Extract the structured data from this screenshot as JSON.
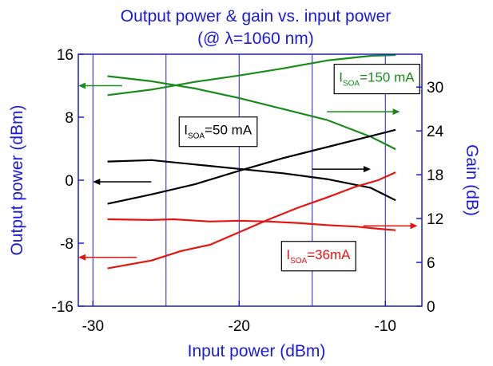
{
  "chart_data": {
    "type": "line",
    "title_line1": "Output power & gain vs. input power",
    "title_line2": "(@ λ=1060 nm)",
    "xlabel": "Input power (dBm)",
    "ylabel_left": "Output power (dBm)",
    "ylabel_right": "Gain (dB)",
    "xlim": [
      -31,
      -7.5
    ],
    "ylim_left": [
      -16,
      16
    ],
    "ylim_right": [
      0,
      34.5
    ],
    "x_ticks": [
      -30,
      -20,
      -10
    ],
    "x_tick_labels": [
      "-30",
      "-20",
      "-10"
    ],
    "y_left_ticks": [
      -16,
      -8,
      0,
      8,
      16
    ],
    "y_left_tick_labels": [
      "-16",
      "-8",
      "0",
      "8",
      "16"
    ],
    "y_right_ticks": [
      0,
      6,
      12,
      18,
      24,
      30
    ],
    "y_right_tick_labels": [
      "0",
      "6",
      "12",
      "18",
      "24",
      "30"
    ],
    "x_grid": [
      -30,
      -25,
      -20,
      -15,
      -10
    ],
    "colors": {
      "axis": "#1a1ae6",
      "green": "#1a8c1a",
      "black": "#000000",
      "red": "#e6140f"
    },
    "series": [
      {
        "color": "green",
        "axis": "left",
        "x": [
          -29,
          -26,
          -23,
          -20,
          -17,
          -14,
          -11,
          -9.3
        ],
        "values": [
          10.8,
          11.5,
          12.5,
          13.3,
          14.2,
          15.2,
          15.8,
          15.9
        ]
      },
      {
        "color": "green",
        "axis": "right",
        "x": [
          -29,
          -26,
          -23,
          -20,
          -17,
          -14,
          -11,
          -9.3
        ],
        "values": [
          31.5,
          30.8,
          29.8,
          28.5,
          27.0,
          25.5,
          23.2,
          21.5
        ]
      },
      {
        "color": "black",
        "axis": "left",
        "x": [
          -29,
          -26,
          -23,
          -20,
          -17,
          -14,
          -11,
          -9.3
        ],
        "values": [
          -3.0,
          -1.8,
          -0.5,
          1.2,
          2.8,
          4.2,
          5.6,
          6.4
        ]
      },
      {
        "color": "black",
        "axis": "right",
        "x": [
          -29,
          -26,
          -23,
          -20,
          -17,
          -14,
          -11,
          -9.3
        ],
        "values": [
          19.8,
          20.0,
          19.4,
          18.8,
          18.2,
          17.4,
          16.2,
          14.5
        ]
      },
      {
        "color": "red",
        "axis": "left",
        "x": [
          -29,
          -26,
          -24,
          -22,
          -20,
          -18,
          -16,
          -14,
          -12,
          -10.5,
          -9.3
        ],
        "values": [
          -11.2,
          -10.2,
          -9.0,
          -8.2,
          -6.6,
          -5.0,
          -3.5,
          -2.2,
          -0.8,
          0.0,
          1.0
        ]
      },
      {
        "color": "red",
        "axis": "right",
        "x": [
          -29,
          -26,
          -24.5,
          -22,
          -20,
          -18,
          -16,
          -14,
          -12,
          -10.5,
          -9.3
        ],
        "values": [
          11.9,
          11.8,
          11.9,
          11.6,
          11.7,
          11.6,
          11.4,
          11.1,
          10.9,
          10.6,
          10.4
        ]
      }
    ],
    "arrows": [
      {
        "color": "green",
        "direction": "left",
        "x": [
          -28.0,
          -31.0
        ],
        "axis": "left",
        "y": 12.0
      },
      {
        "color": "green",
        "direction": "right",
        "x": [
          -14.0,
          -9.0
        ],
        "axis": "left",
        "y": 8.7
      },
      {
        "color": "black",
        "direction": "left",
        "x": [
          -26.0,
          -30.0
        ],
        "axis": "left",
        "y": -0.2
      },
      {
        "color": "black",
        "direction": "right",
        "x": [
          -15.0,
          -11.0
        ],
        "axis": "left",
        "y": 1.4
      },
      {
        "color": "red",
        "direction": "left",
        "x": [
          -27.0,
          -31.0
        ],
        "axis": "left",
        "y": -9.8
      },
      {
        "color": "red",
        "direction": "right",
        "x": [
          -11.5,
          -7.8
        ],
        "axis": "left",
        "y": -5.8
      }
    ],
    "annotations": [
      {
        "color": "green",
        "prefix": "I",
        "sub": "SOA",
        "suffix": "=150 mA",
        "x": -13.5,
        "y": 12.5
      },
      {
        "color": "black",
        "prefix": "I",
        "sub": "SOA",
        "suffix": "=50 mA",
        "x": -24.1,
        "y": 5.8
      },
      {
        "color": "red",
        "prefix": "I",
        "sub": "SOA",
        "suffix": "=36mA",
        "x": -17.1,
        "y": -10.0
      }
    ]
  }
}
